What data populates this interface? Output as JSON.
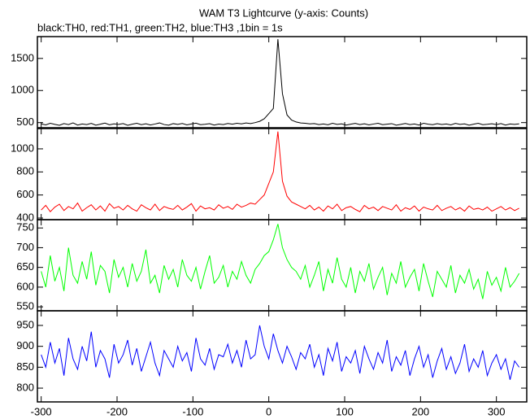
{
  "chart_data": {
    "type": "line",
    "title": "WAM T3 Lightcurve (y-axis: Counts)",
    "subtitle": "black:TH0, red:TH1, green:TH2, blue:TH3 ,1bin = 1s",
    "x": [
      -300,
      -294,
      -288,
      -282,
      -276,
      -270,
      -264,
      -258,
      -252,
      -246,
      -240,
      -234,
      -228,
      -222,
      -216,
      -210,
      -204,
      -198,
      -192,
      -186,
      -180,
      -174,
      -168,
      -162,
      -156,
      -150,
      -144,
      -138,
      -132,
      -126,
      -120,
      -114,
      -108,
      -102,
      -96,
      -90,
      -84,
      -78,
      -72,
      -66,
      -60,
      -54,
      -48,
      -42,
      -36,
      -30,
      -24,
      -18,
      -12,
      -6,
      0,
      6,
      12,
      18,
      24,
      30,
      36,
      42,
      48,
      54,
      60,
      66,
      72,
      78,
      84,
      90,
      96,
      102,
      108,
      114,
      120,
      126,
      132,
      138,
      144,
      150,
      156,
      162,
      168,
      174,
      180,
      186,
      192,
      198,
      204,
      210,
      216,
      222,
      228,
      234,
      240,
      246,
      252,
      258,
      264,
      270,
      276,
      282,
      288,
      294,
      300,
      306,
      312,
      318,
      324,
      330
    ],
    "xlim": [
      -305,
      340
    ],
    "xticks": [
      -300,
      -200,
      -100,
      0,
      100,
      200,
      300
    ],
    "panels": [
      {
        "ylim": [
          420,
          1840
        ],
        "yticks": [
          500,
          1000,
          1500
        ],
        "series": [
          {
            "color": "#000000",
            "values": [
              480,
              465,
              490,
              472,
              458,
              485,
              470,
              495,
              462,
              478,
              470,
              488,
              460,
              476,
              492,
              466,
              480,
              472,
              485,
              458,
              475,
              490,
              468,
              482,
              463,
              478,
              495,
              470,
              460,
              484,
              472,
              486,
              465,
              479,
              491,
              468,
              474,
              483,
              461,
              477,
              469,
              487,
              475,
              490,
              480,
              495,
              485,
              500,
              520,
              560,
              640,
              720,
              1800,
              950,
              620,
              540,
              510,
              495,
              490,
              480,
              485,
              470,
              478,
              466,
              490,
              472,
              480,
              462,
              475,
              488,
              470,
              482,
              465,
              478,
              490,
              468,
              476,
              484,
              460,
              472,
              486,
              470,
              478,
              462,
              490,
              475,
              468,
              483,
              471,
              479,
              465,
              488,
              472,
              480,
              460,
              476,
              490,
              468,
              474,
              482,
              470,
              485,
              462,
              478,
              473,
              480
            ]
          }
        ]
      },
      {
        "ylim": [
          386,
          1176
        ],
        "yticks": [
          400,
          600,
          800,
          1000
        ],
        "series": [
          {
            "color": "#ff0000",
            "values": [
              470,
              510,
              455,
              495,
              520,
              465,
              500,
              480,
              530,
              460,
              490,
              515,
              470,
              505,
              460,
              525,
              485,
              500,
              470,
              510,
              480,
              460,
              515,
              490,
              470,
              520,
              465,
              500,
              485,
              475,
              510,
              470,
              495,
              525,
              460,
              505,
              480,
              490,
              470,
              515,
              485,
              500,
              475,
              520,
              495,
              510,
              530,
              520,
              560,
              600,
              700,
              800,
              1150,
              720,
              590,
              540,
              520,
              500,
              480,
              510,
              470,
              495,
              460,
              505,
              480,
              520,
              465,
              490,
              500,
              475,
              455,
              510,
              480,
              495,
              465,
              500,
              485,
              470,
              515,
              460,
              490,
              475,
              505,
              460,
              495,
              480,
              470,
              510,
              465,
              485,
              500,
              470,
              490,
              460,
              505,
              475,
              485,
              470,
              495,
              460,
              480,
              500,
              470,
              490,
              465,
              485
            ]
          }
        ]
      },
      {
        "ylim": [
          540,
          771
        ],
        "yticks": [
          550,
          600,
          650,
          700,
          750
        ],
        "series": [
          {
            "color": "#00ff00",
            "values": [
              640,
              600,
              680,
              615,
              650,
              590,
              700,
              630,
              610,
              665,
              620,
              690,
              605,
              655,
              640,
              585,
              670,
              625,
              650,
              600,
              660,
              615,
              640,
              695,
              610,
              630,
              585,
              655,
              620,
              645,
              600,
              670,
              630,
              615,
              650,
              595,
              640,
              680,
              610,
              625,
              655,
              600,
              640,
              620,
              665,
              630,
              610,
              645,
              660,
              680,
              690,
              720,
              760,
              700,
              670,
              650,
              640,
              620,
              655,
              600,
              630,
              665,
              590,
              645,
              610,
              675,
              620,
              600,
              650,
              585,
              640,
              615,
              660,
              595,
              625,
              650,
              580,
              635,
              610,
              665,
              600,
              625,
              645,
              590,
              660,
              615,
              575,
              640,
              620,
              600,
              655,
              585,
              630,
              610,
              645,
              595,
              620,
              570,
              640,
              605,
              625,
              590,
              650,
              600,
              615,
              635
            ]
          }
        ]
      },
      {
        "ylim": [
          767,
          985
        ],
        "yticks": [
          800,
          850,
          900,
          950
        ],
        "series": [
          {
            "color": "#0000ff",
            "values": [
              880,
              850,
              910,
              860,
              895,
              830,
              920,
              870,
              845,
              900,
              865,
              935,
              850,
              890,
              870,
              825,
              905,
              860,
              880,
              915,
              855,
              895,
              840,
              875,
              910,
              860,
              830,
              890,
              870,
              850,
              900,
              865,
              885,
              840,
              920,
              870,
              855,
              895,
              845,
              880,
              875,
              905,
              860,
              890,
              850,
              915,
              870,
              880,
              950,
              900,
              870,
              930,
              890,
              860,
              900,
              875,
              845,
              885,
              870,
              905,
              850,
              880,
              830,
              895,
              865,
              910,
              840,
              875,
              860,
              890,
              835,
              900,
              870,
              845,
              885,
              860,
              915,
              840,
              875,
              855,
              890,
              830,
              870,
              900,
              850,
              880,
              825,
              865,
              895,
              845,
              875,
              835,
              860,
              905,
              840,
              870,
              850,
              890,
              830,
              860,
              880,
              845,
              870,
              820,
              865,
              850
            ]
          }
        ]
      }
    ]
  }
}
